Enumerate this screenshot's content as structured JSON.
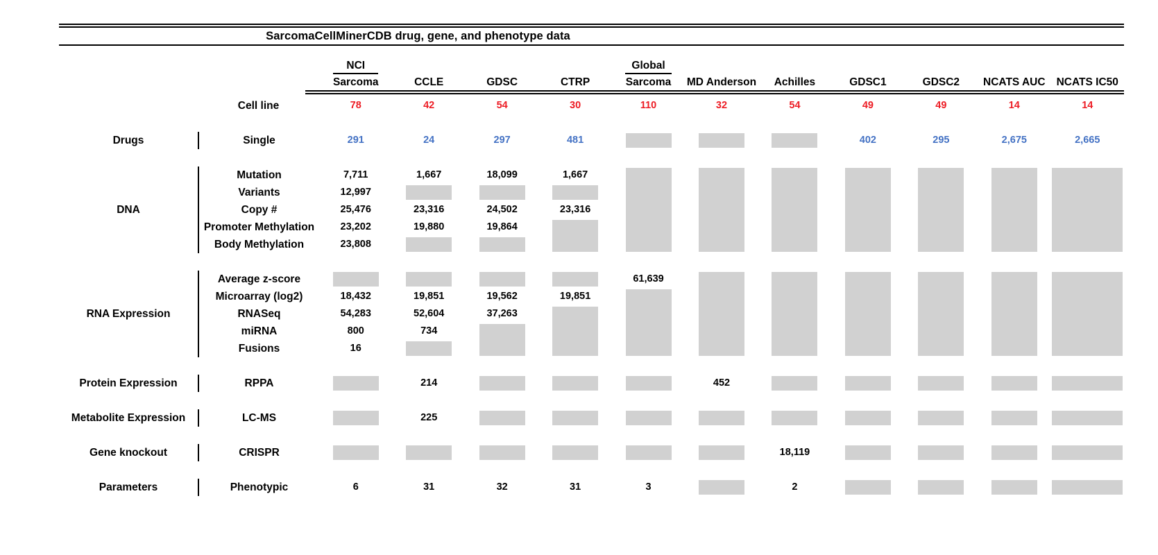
{
  "chart_data": {
    "type": "table",
    "title": "SarcomaCellMinerCDB drug, gene, and phenotype data",
    "colors": {
      "cell_line_count": "#ED1C24",
      "drug_count": "#4472C4",
      "no_data_box": "#D1D1D1",
      "text": "#000000"
    },
    "header": {
      "columns": [
        {
          "top": "NCI",
          "label": "Sarcoma"
        },
        {
          "label": "CCLE"
        },
        {
          "label": "GDSC"
        },
        {
          "label": "CTRP"
        },
        {
          "top": "Global",
          "label": "Sarcoma"
        },
        {
          "label": "MD Anderson"
        },
        {
          "label": "Achilles"
        },
        {
          "label": "GDSC1"
        },
        {
          "label": "GDSC2"
        },
        {
          "label": "NCATS AUC"
        },
        {
          "label": "NCATS IC50"
        }
      ],
      "cell_line_label": "Cell line",
      "cell_line_counts": [
        "78",
        "42",
        "54",
        "30",
        "110",
        "32",
        "54",
        "49",
        "49",
        "14",
        "14"
      ]
    },
    "sections": [
      {
        "category": "Drugs",
        "rows": [
          "Single"
        ],
        "value_color": "#4472C4",
        "cols": [
          [
            {
              "v": "291"
            }
          ],
          [
            {
              "v": "24"
            }
          ],
          [
            {
              "v": "297"
            }
          ],
          [
            {
              "v": "481"
            }
          ],
          [
            {
              "g": 1
            }
          ],
          [
            {
              "g": 1
            }
          ],
          [
            {
              "g": 1
            }
          ],
          [
            {
              "v": "402"
            }
          ],
          [
            {
              "v": "295"
            }
          ],
          [
            {
              "v": "2,675"
            }
          ],
          [
            {
              "v": "2,665"
            }
          ]
        ]
      },
      {
        "category": "DNA",
        "rows": [
          "Mutation",
          "Variants",
          "Copy #",
          "Promoter Methylation",
          "Body Methylation"
        ],
        "cols": [
          [
            {
              "v": "7,711"
            },
            {
              "v": "12,997"
            },
            {
              "v": "25,476"
            },
            {
              "v": "23,202"
            },
            {
              "v": "23,808"
            }
          ],
          [
            {
              "v": "1,667"
            },
            {
              "g": 1
            },
            {
              "v": "23,316"
            },
            {
              "v": "19,880"
            },
            {
              "g": 1
            }
          ],
          [
            {
              "v": "18,099"
            },
            {
              "g": 1
            },
            {
              "v": "24,502"
            },
            {
              "v": "19,864"
            },
            {
              "g": 1
            }
          ],
          [
            {
              "v": "1,667"
            },
            {
              "g": 1
            },
            {
              "v": "23,316"
            },
            {
              "g": 2
            }
          ],
          [
            {
              "g": 5
            }
          ],
          [
            {
              "g": 5
            }
          ],
          [
            {
              "g": 5
            }
          ],
          [
            {
              "g": 5
            }
          ],
          [
            {
              "g": 5
            }
          ],
          [
            {
              "g": 5
            }
          ],
          [
            {
              "g": 5
            }
          ]
        ]
      },
      {
        "category": "RNA Expression",
        "rows": [
          "Average z-score",
          "Microarray (log2)",
          "RNASeq",
          "miRNA",
          "Fusions"
        ],
        "cols": [
          [
            {
              "g": 1
            },
            {
              "v": "18,432"
            },
            {
              "v": "54,283"
            },
            {
              "v": "800"
            },
            {
              "v": "16"
            }
          ],
          [
            {
              "g": 1
            },
            {
              "v": "19,851"
            },
            {
              "v": "52,604"
            },
            {
              "v": "734"
            },
            {
              "g": 1
            }
          ],
          [
            {
              "g": 1
            },
            {
              "v": "19,562"
            },
            {
              "v": "37,263"
            },
            {
              "g": 2
            }
          ],
          [
            {
              "g": 1
            },
            {
              "v": "19,851"
            },
            {
              "g": 3
            }
          ],
          [
            {
              "v": "61,639"
            },
            {
              "g": 4
            }
          ],
          [
            {
              "g": 5
            }
          ],
          [
            {
              "g": 5
            }
          ],
          [
            {
              "g": 5
            }
          ],
          [
            {
              "g": 5
            }
          ],
          [
            {
              "g": 5
            }
          ],
          [
            {
              "g": 5
            }
          ]
        ]
      },
      {
        "category": "Protein Expression",
        "rows": [
          "RPPA"
        ],
        "cols": [
          [
            {
              "g": 1
            }
          ],
          [
            {
              "v": "214"
            }
          ],
          [
            {
              "g": 1
            }
          ],
          [
            {
              "g": 1
            }
          ],
          [
            {
              "g": 1
            }
          ],
          [
            {
              "v": "452"
            }
          ],
          [
            {
              "g": 1
            }
          ],
          [
            {
              "g": 1
            }
          ],
          [
            {
              "g": 1
            }
          ],
          [
            {
              "g": 1
            }
          ],
          [
            {
              "g": 1
            }
          ]
        ]
      },
      {
        "category": "Metabolite Expression",
        "rows": [
          "LC-MS"
        ],
        "cols": [
          [
            {
              "g": 1
            }
          ],
          [
            {
              "v": "225"
            }
          ],
          [
            {
              "g": 1
            }
          ],
          [
            {
              "g": 1
            }
          ],
          [
            {
              "g": 1
            }
          ],
          [
            {
              "g": 1
            }
          ],
          [
            {
              "g": 1
            }
          ],
          [
            {
              "g": 1
            }
          ],
          [
            {
              "g": 1
            }
          ],
          [
            {
              "g": 1
            }
          ],
          [
            {
              "g": 1
            }
          ]
        ]
      },
      {
        "category": "Gene knockout",
        "rows": [
          "CRISPR"
        ],
        "cols": [
          [
            {
              "g": 1
            }
          ],
          [
            {
              "g": 1
            }
          ],
          [
            {
              "g": 1
            }
          ],
          [
            {
              "g": 1
            }
          ],
          [
            {
              "g": 1
            }
          ],
          [
            {
              "g": 1
            }
          ],
          [
            {
              "v": "18,119"
            }
          ],
          [
            {
              "g": 1
            }
          ],
          [
            {
              "g": 1
            }
          ],
          [
            {
              "g": 1
            }
          ],
          [
            {
              "g": 1
            }
          ]
        ]
      },
      {
        "category": "Parameters",
        "rows": [
          "Phenotypic"
        ],
        "cols": [
          [
            {
              "v": "6"
            }
          ],
          [
            {
              "v": "31"
            }
          ],
          [
            {
              "v": "32"
            }
          ],
          [
            {
              "v": "31"
            }
          ],
          [
            {
              "v": "3"
            }
          ],
          [
            {
              "g": 1
            }
          ],
          [
            {
              "v": "2"
            }
          ],
          [
            {
              "g": 1
            }
          ],
          [
            {
              "g": 1
            }
          ],
          [
            {
              "g": 1
            }
          ],
          [
            {
              "g": 1
            }
          ]
        ]
      }
    ]
  }
}
